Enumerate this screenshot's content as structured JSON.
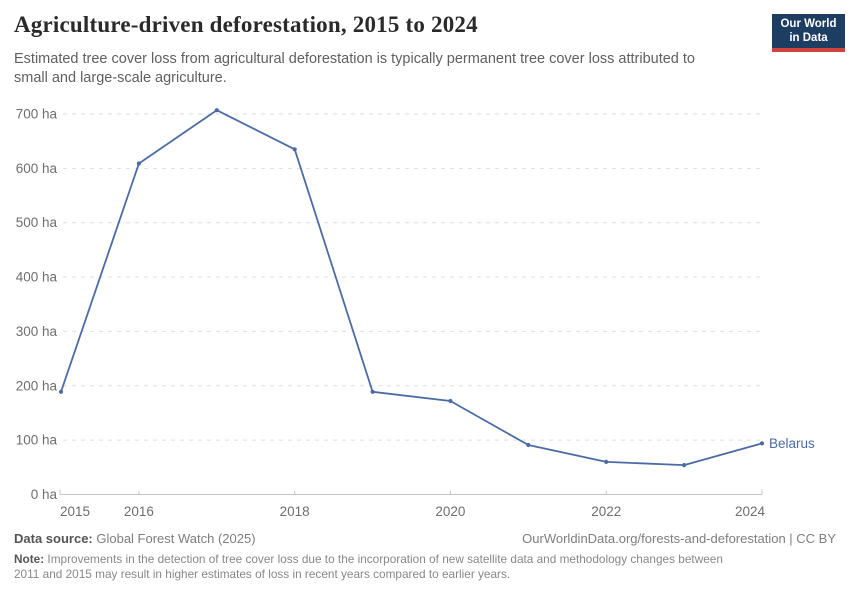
{
  "header": {
    "title": "Agriculture-driven deforestation, 2015 to 2024",
    "subtitle": "Estimated tree cover loss from agricultural deforestation is typically permanent tree cover loss attributed to small and large-scale agriculture."
  },
  "logo": {
    "line1": "Our World",
    "line2": "in Data",
    "bg_color": "#1D3D63",
    "stripe_color": "#D0433C"
  },
  "chart_data": {
    "type": "line",
    "title": "Agriculture-driven deforestation, 2015 to 2024",
    "x": [
      2015,
      2016,
      2017,
      2018,
      2019,
      2020,
      2021,
      2022,
      2023,
      2024
    ],
    "series": [
      {
        "name": "Belarus",
        "values": [
          189,
          609,
          707,
          635,
          189,
          172,
          91,
          60,
          54,
          94
        ],
        "color": "#4C6BA5"
      }
    ],
    "x_ticks": [
      2015,
      2016,
      2018,
      2020,
      2022,
      2024
    ],
    "y_ticks": [
      0,
      100,
      200,
      300,
      400,
      500,
      600,
      700
    ],
    "y_unit": " ha",
    "xlim": [
      2015,
      2024
    ],
    "ylim": [
      0,
      700
    ],
    "grid": "horizontal dashed",
    "legend": "line-end label"
  },
  "footer": {
    "datasource_label": "Data source:",
    "datasource_value": " Global Forest Watch (2025)",
    "link": "OurWorldinData.org/forests-and-deforestation | CC BY",
    "note_label": "Note:",
    "note_text": " Improvements in the detection of tree cover loss due to the incorporation of new satellite data and methodology changes between 2011 and 2015 may result in higher estimates of loss in recent years compared to earlier years."
  }
}
